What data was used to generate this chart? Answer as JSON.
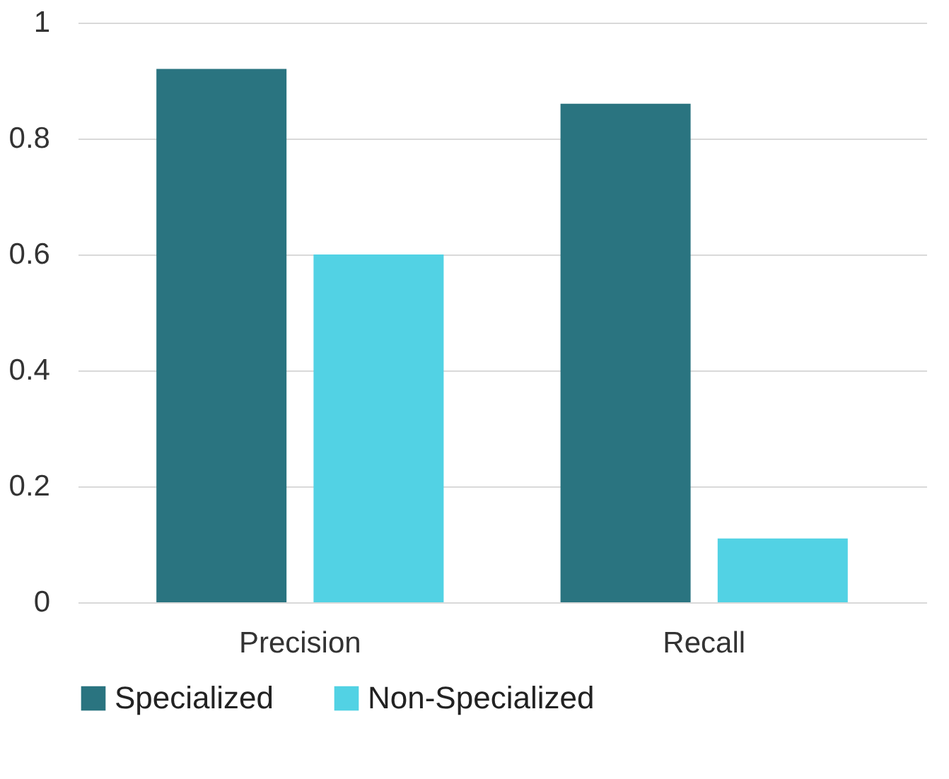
{
  "chart_data": {
    "type": "bar",
    "categories": [
      "Precision",
      "Recall"
    ],
    "series": [
      {
        "name": "Specialized",
        "color": "#2a7480",
        "values": [
          0.92,
          0.86
        ]
      },
      {
        "name": "Non-Specialized",
        "color": "#52d2e4",
        "values": [
          0.6,
          0.11
        ]
      }
    ],
    "ylim": [
      0,
      1
    ],
    "yticks": [
      0,
      0.2,
      0.4,
      0.6,
      0.8,
      1
    ],
    "grid": "y",
    "legend": "bottom"
  }
}
